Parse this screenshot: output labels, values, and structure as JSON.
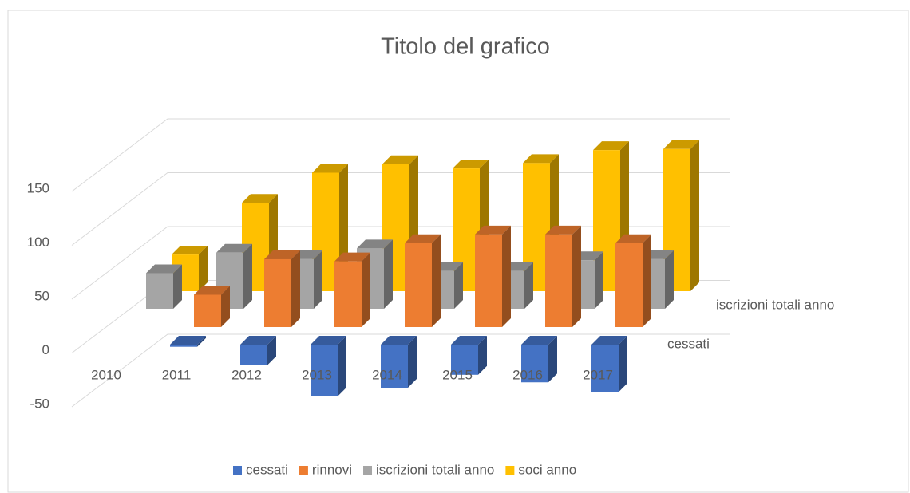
{
  "chart_data": {
    "type": "bar3d",
    "title": "Titolo del grafico",
    "categories": [
      "2010",
      "2011",
      "2012",
      "2013",
      "2014",
      "2015",
      "2016",
      "2017"
    ],
    "series": [
      {
        "name": "cessati",
        "color": "#4472c4",
        "values": [
          -2,
          -19,
          -48,
          -40,
          -28,
          -35,
          -44,
          null
        ]
      },
      {
        "name": "rinnovi",
        "color": "#ed7d31",
        "values": [
          30,
          63,
          61,
          78,
          86,
          86,
          78,
          null
        ]
      },
      {
        "name": "iscrizioni totali anno",
        "color": "#a5a5a5",
        "values": [
          33,
          52,
          46,
          56,
          35,
          35,
          45,
          46
        ]
      },
      {
        "name": "soci anno",
        "color": "#ffc000",
        "values": [
          34,
          82,
          110,
          118,
          114,
          119,
          131,
          132
        ]
      }
    ],
    "ylim": [
      -50,
      150
    ],
    "yticks": [
      -50,
      0,
      50,
      100,
      150
    ],
    "grid": true,
    "legend": "bottom"
  }
}
